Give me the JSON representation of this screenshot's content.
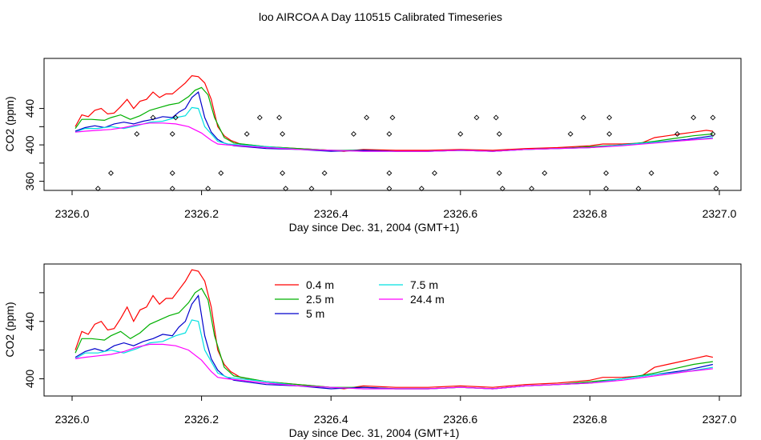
{
  "title": "loo AIRCOA A  Day 110515  Calibrated Timeseries",
  "chart_data": [
    {
      "type": "line+scatter",
      "xlabel": "Day since Dec. 31, 2004 (GMT+1)",
      "ylabel": "CO2 (ppm)",
      "xlim": [
        2326.0,
        2327.0
      ],
      "ylim": [
        350,
        495
      ],
      "xticks": [
        "2326.0",
        "2326.2",
        "2326.4",
        "2326.6",
        "2326.8",
        "2327.0"
      ],
      "yticks": [
        360,
        400,
        440
      ],
      "grid": false,
      "series": [
        {
          "color": "#ff0000",
          "x": [
            2326.005,
            2326.015,
            2326.025,
            2326.035,
            2326.045,
            2326.055,
            2326.065,
            2326.075,
            2326.085,
            2326.095,
            2326.105,
            2326.115,
            2326.125,
            2326.135,
            2326.145,
            2326.155,
            2326.165,
            2326.175,
            2326.185,
            2326.195,
            2326.205,
            2326.215,
            2326.225,
            2326.235,
            2326.245,
            2326.26,
            2326.3,
            2326.35,
            2326.4,
            2326.42,
            2326.45,
            2326.5,
            2326.55,
            2326.6,
            2326.65,
            2326.7,
            2326.75,
            2326.8,
            2326.82,
            2326.85,
            2326.88,
            2326.9,
            2326.92,
            2326.94,
            2326.96,
            2326.98,
            2326.99
          ],
          "y": [
            420,
            433,
            431,
            438,
            440,
            434,
            435,
            442,
            450,
            440,
            448,
            450,
            458,
            452,
            456,
            456,
            462,
            468,
            476,
            475,
            468,
            450,
            420,
            410,
            405,
            401,
            398,
            396,
            394,
            393,
            395,
            394,
            394,
            395,
            394,
            396,
            397,
            399,
            401,
            401,
            402,
            408,
            410,
            412,
            414,
            416,
            415
          ]
        },
        {
          "color": "#00b000",
          "x": [
            2326.005,
            2326.015,
            2326.03,
            2326.05,
            2326.06,
            2326.075,
            2326.09,
            2326.105,
            2326.12,
            2326.135,
            2326.15,
            2326.165,
            2326.18,
            2326.19,
            2326.2,
            2326.21,
            2326.22,
            2326.235,
            2326.25,
            2326.3,
            2326.35,
            2326.4,
            2326.45,
            2326.5,
            2326.55,
            2326.6,
            2326.65,
            2326.7,
            2326.75,
            2326.8,
            2326.85,
            2326.9,
            2326.93,
            2326.96,
            2326.99
          ],
          "y": [
            418,
            428,
            428,
            427,
            430,
            433,
            428,
            432,
            438,
            441,
            444,
            446,
            453,
            460,
            463,
            455,
            430,
            408,
            402,
            398,
            396,
            394,
            394,
            393,
            393,
            394,
            393,
            395,
            396,
            398,
            400,
            404,
            407,
            410,
            412
          ]
        },
        {
          "color": "#0000cc",
          "x": [
            2326.005,
            2326.02,
            2326.035,
            2326.05,
            2326.065,
            2326.08,
            2326.095,
            2326.11,
            2326.125,
            2326.14,
            2326.155,
            2326.165,
            2326.175,
            2326.185,
            2326.195,
            2326.205,
            2326.215,
            2326.225,
            2326.235,
            2326.25,
            2326.3,
            2326.35,
            2326.4,
            2326.45,
            2326.5,
            2326.55,
            2326.6,
            2326.65,
            2326.7,
            2326.75,
            2326.8,
            2326.85,
            2326.9,
            2326.95,
            2326.99
          ],
          "y": [
            415,
            419,
            421,
            419,
            423,
            425,
            423,
            426,
            428,
            431,
            430,
            436,
            440,
            452,
            458,
            430,
            414,
            406,
            402,
            399,
            396,
            395,
            393,
            394,
            393,
            393,
            394,
            393,
            395,
            396,
            397,
            400,
            403,
            406,
            410
          ]
        },
        {
          "color": "#00e0e0",
          "x": [
            2326.005,
            2326.02,
            2326.04,
            2326.06,
            2326.08,
            2326.1,
            2326.12,
            2326.14,
            2326.16,
            2326.175,
            2326.185,
            2326.195,
            2326.205,
            2326.215,
            2326.225,
            2326.24,
            2326.3,
            2326.35,
            2326.4,
            2326.45,
            2326.5,
            2326.55,
            2326.6,
            2326.65,
            2326.7,
            2326.75,
            2326.8,
            2326.85,
            2326.9,
            2326.95,
            2326.99
          ],
          "y": [
            414,
            418,
            418,
            420,
            418,
            421,
            425,
            426,
            430,
            432,
            441,
            440,
            420,
            412,
            404,
            401,
            398,
            395,
            394,
            393,
            393,
            393,
            394,
            393,
            395,
            396,
            397,
            400,
            403,
            405,
            408
          ]
        },
        {
          "color": "#ff00ff",
          "x": [
            2326.005,
            2326.02,
            2326.04,
            2326.06,
            2326.08,
            2326.1,
            2326.12,
            2326.14,
            2326.16,
            2326.18,
            2326.2,
            2326.215,
            2326.225,
            2326.24,
            2326.3,
            2326.35,
            2326.4,
            2326.45,
            2326.5,
            2326.55,
            2326.6,
            2326.65,
            2326.7,
            2326.75,
            2326.8,
            2326.85,
            2326.9,
            2326.95,
            2326.99
          ],
          "y": [
            414,
            415,
            416,
            417,
            419,
            422,
            424,
            424,
            423,
            420,
            413,
            405,
            401,
            400,
            397,
            395,
            394,
            393,
            393,
            393,
            394,
            393,
            395,
            396,
            397,
            399,
            402,
            405,
            407
          ]
        }
      ],
      "points": {
        "x": [
          2326.04,
          2326.06,
          2326.1,
          2326.125,
          2326.155,
          2326.155,
          2326.155,
          2326.16,
          2326.21,
          2326.23,
          2326.27,
          2326.29,
          2326.32,
          2326.325,
          2326.325,
          2326.33,
          2326.37,
          2326.39,
          2326.435,
          2326.455,
          2326.49,
          2326.49,
          2326.49,
          2326.495,
          2326.54,
          2326.56,
          2326.6,
          2326.625,
          2326.655,
          2326.66,
          2326.66,
          2326.665,
          2326.71,
          2326.73,
          2326.77,
          2326.79,
          2326.825,
          2326.825,
          2326.83,
          2326.83,
          2326.875,
          2326.895,
          2326.935,
          2326.96,
          2326.99,
          2326.99,
          2326.995,
          2326.995
        ],
        "y": [
          352,
          369,
          412,
          430,
          352,
          369,
          412,
          430,
          352,
          369,
          412,
          430,
          430,
          412,
          369,
          352,
          352,
          369,
          412,
          430,
          352,
          369,
          412,
          430,
          352,
          369,
          412,
          430,
          430,
          412,
          369,
          352,
          352,
          369,
          412,
          430,
          369,
          352,
          412,
          430,
          352,
          369,
          412,
          430,
          430,
          412,
          369,
          352
        ]
      }
    },
    {
      "type": "line",
      "xlabel": "Day since Dec. 31, 2004 (GMT+1)",
      "ylabel": "CO2 (ppm)",
      "xlim": [
        2326.0,
        2327.0
      ],
      "ylim": [
        388,
        480
      ],
      "xticks": [
        "2326.0",
        "2326.2",
        "2326.4",
        "2326.6",
        "2326.8",
        "2327.0"
      ],
      "yticks": [
        400,
        440
      ],
      "grid": false,
      "legend": {
        "position": "top-left-center",
        "entries": [
          {
            "label": "0.4 m",
            "color": "#ff0000"
          },
          {
            "label": "2.5 m",
            "color": "#00b000"
          },
          {
            "label": "5 m",
            "color": "#0000cc"
          },
          {
            "label": "7.5 m",
            "color": "#00e0e0"
          },
          {
            "label": "24.4 m",
            "color": "#ff00ff"
          }
        ]
      },
      "series_ref": "same as top panel series"
    }
  ]
}
